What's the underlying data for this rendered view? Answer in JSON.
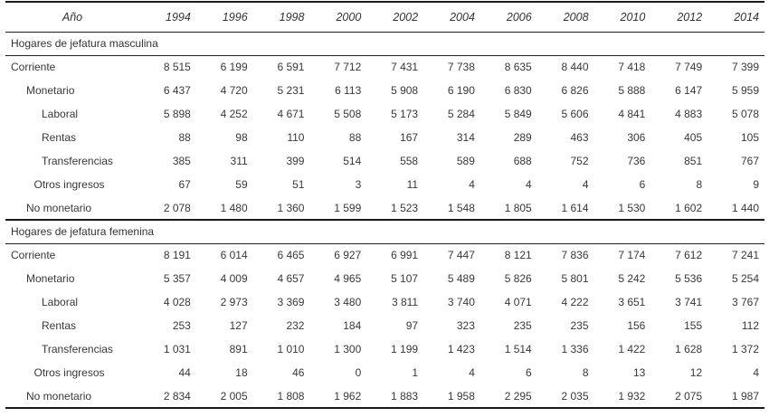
{
  "colors": {
    "background": "#ffffff",
    "text": "#383838",
    "rule": "#1a1a1a"
  },
  "table": {
    "header": {
      "label": "Año",
      "years": [
        "1994",
        "1996",
        "1998",
        "2000",
        "2002",
        "2004",
        "2006",
        "2008",
        "2010",
        "2012",
        "2014"
      ]
    },
    "sections": [
      {
        "title": "Hogares de jefatura masculina",
        "rows": [
          {
            "label": "Corriente",
            "level": 0,
            "values": [
              8515,
              6199,
              6591,
              7712,
              7431,
              7738,
              8635,
              8440,
              7418,
              7749,
              7399
            ]
          },
          {
            "label": "Monetario",
            "level": 1,
            "values": [
              6437,
              4720,
              5231,
              6113,
              5908,
              6190,
              6830,
              6826,
              5888,
              6147,
              5959
            ]
          },
          {
            "label": "Laboral",
            "level": 2,
            "values": [
              5898,
              4252,
              4671,
              5508,
              5173,
              5284,
              5849,
              5606,
              4841,
              4883,
              5078
            ]
          },
          {
            "label": "Rentas",
            "level": 2,
            "values": [
              88,
              98,
              110,
              88,
              167,
              314,
              289,
              463,
              306,
              405,
              105
            ]
          },
          {
            "label": "Transferencias",
            "level": 2,
            "values": [
              385,
              311,
              399,
              514,
              558,
              589,
              688,
              752,
              736,
              851,
              767
            ]
          },
          {
            "label": "Otros ingresos",
            "level": 1.5,
            "values": [
              67,
              59,
              51,
              3,
              11,
              4,
              4,
              4,
              6,
              8,
              9
            ]
          },
          {
            "label": "No monetario",
            "level": 1,
            "values": [
              2078,
              1480,
              1360,
              1599,
              1523,
              1548,
              1805,
              1614,
              1530,
              1602,
              1440
            ]
          }
        ]
      },
      {
        "title": "Hogares de jefatura femenina",
        "rows": [
          {
            "label": "Corriente",
            "level": 0,
            "values": [
              8191,
              6014,
              6465,
              6927,
              6991,
              7447,
              8121,
              7836,
              7174,
              7612,
              7241
            ]
          },
          {
            "label": "Monetario",
            "level": 1,
            "values": [
              5357,
              4009,
              4657,
              4965,
              5107,
              5489,
              5826,
              5801,
              5242,
              5536,
              5254
            ]
          },
          {
            "label": "Laboral",
            "level": 2,
            "values": [
              4028,
              2973,
              3369,
              3480,
              3811,
              3740,
              4071,
              4222,
              3651,
              3741,
              3767
            ]
          },
          {
            "label": "Rentas",
            "level": 2,
            "values": [
              253,
              127,
              232,
              184,
              97,
              323,
              235,
              235,
              156,
              155,
              112
            ]
          },
          {
            "label": "Transferencias",
            "level": 2,
            "values": [
              1031,
              891,
              1010,
              1300,
              1199,
              1423,
              1514,
              1336,
              1422,
              1628,
              1372
            ]
          },
          {
            "label": "Otros ingresos",
            "level": 1.5,
            "values": [
              44,
              18,
              46,
              0,
              1,
              4,
              6,
              8,
              13,
              12,
              4
            ]
          },
          {
            "label": "No monetario",
            "level": 1,
            "values": [
              2834,
              2005,
              1808,
              1962,
              1883,
              1958,
              2295,
              2035,
              1932,
              2075,
              1987
            ]
          }
        ]
      }
    ]
  }
}
